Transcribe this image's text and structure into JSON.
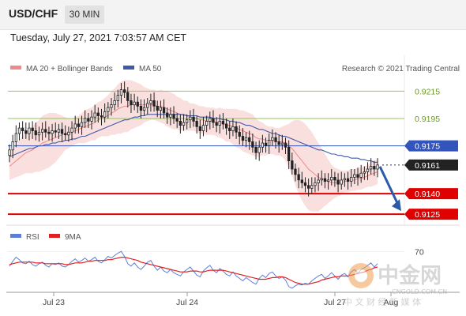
{
  "header": {
    "pair": "USD/CHF",
    "timeframe": "30 MIN"
  },
  "datetime": "Tuesday, July 27, 2021 7:03:57 AM CET",
  "legend": {
    "ma20": {
      "label": "MA 20 + Bollinger Bands",
      "color": "#f08a8a"
    },
    "ma50": {
      "label": "MA 50",
      "color": "#3f5aa8"
    },
    "rsi": {
      "label": "RSI",
      "color": "#5b7fd6"
    },
    "ma9": {
      "label": "9MA",
      "color": "#e02020"
    }
  },
  "source": "Research © 2021 Trading Central",
  "watermark": {
    "brand": "中金网",
    "site": "CNGOLD.COM.CN",
    "tagline": "中 文 财 经 新 媒 体"
  },
  "chart_data": [
    {
      "type": "candlestick",
      "ylim": [
        0.9117,
        0.9225
      ],
      "levels": [
        {
          "value": 0.9215,
          "label": "0.9215",
          "kind": "resistance",
          "color": "#8fc85a"
        },
        {
          "value": 0.9195,
          "label": "0.9195",
          "kind": "resistance",
          "color": "#8fc85a"
        },
        {
          "value": 0.9175,
          "label": "0.9175",
          "kind": "pivot",
          "color": "#3355bb"
        },
        {
          "value": 0.9161,
          "label": "0.9161",
          "kind": "last",
          "color": "#222222"
        },
        {
          "value": 0.914,
          "label": "0.9140",
          "kind": "support",
          "color": "#e00000"
        },
        {
          "value": 0.9125,
          "label": "0.9125",
          "kind": "support",
          "color": "#e00000"
        }
      ],
      "x_ticks": [
        "Jul 23",
        "Jul 24",
        "Jul 27",
        "Aug"
      ],
      "forecast_arrow": {
        "from": 0.9161,
        "to": 0.9125,
        "direction": "down"
      },
      "closes": [
        0.9172,
        0.9178,
        0.9184,
        0.9188,
        0.9186,
        0.9184,
        0.9188,
        0.9186,
        0.9183,
        0.9185,
        0.9187,
        0.9185,
        0.9184,
        0.9186,
        0.9185,
        0.9187,
        0.9184,
        0.9183,
        0.9185,
        0.9188,
        0.9191,
        0.9189,
        0.9192,
        0.9195,
        0.9193,
        0.9196,
        0.9199,
        0.9197,
        0.9196,
        0.92,
        0.9203,
        0.9205,
        0.9208,
        0.9212,
        0.9216,
        0.9214,
        0.9208,
        0.9205,
        0.9207,
        0.9204,
        0.9201,
        0.9203,
        0.9206,
        0.9208,
        0.9204,
        0.9201,
        0.9203,
        0.9199,
        0.9196,
        0.9198,
        0.9195,
        0.9193,
        0.919,
        0.9192,
        0.9194,
        0.9196,
        0.9193,
        0.9189,
        0.9186,
        0.919,
        0.9193,
        0.9195,
        0.9192,
        0.919,
        0.9193,
        0.9191,
        0.9188,
        0.9186,
        0.9189,
        0.9185,
        0.9182,
        0.9179,
        0.9181,
        0.9178,
        0.9174,
        0.917,
        0.9174,
        0.9177,
        0.9175,
        0.9179,
        0.9181,
        0.9178,
        0.9176,
        0.9177,
        0.9174,
        0.9164,
        0.9158,
        0.9154,
        0.915,
        0.9148,
        0.9146,
        0.9144,
        0.9146,
        0.9148,
        0.915,
        0.9151,
        0.9149,
        0.915,
        0.9152,
        0.915,
        0.9147,
        0.915,
        0.9151,
        0.9149,
        0.9152,
        0.9154,
        0.9152,
        0.9155,
        0.9156,
        0.9158,
        0.916,
        0.9158,
        0.9161
      ],
      "ma20": [
        0.916,
        0.9162,
        0.9164,
        0.9166,
        0.9168,
        0.917,
        0.9171,
        0.9172,
        0.9174,
        0.9175,
        0.9177,
        0.9178,
        0.9179,
        0.918,
        0.9181,
        0.9182,
        0.9183,
        0.9184,
        0.9184,
        0.9185,
        0.9186,
        0.9187,
        0.9188,
        0.9189,
        0.919,
        0.9191,
        0.9192,
        0.9194,
        0.9195,
        0.9196,
        0.9197,
        0.9199,
        0.92,
        0.9202,
        0.9203,
        0.9204,
        0.9204,
        0.9205,
        0.9205,
        0.9205,
        0.9205,
        0.9205,
        0.9205,
        0.9205,
        0.9205,
        0.9204,
        0.9204,
        0.9203,
        0.9202,
        0.9201,
        0.92,
        0.9199,
        0.9198,
        0.9197,
        0.9197,
        0.9196,
        0.9196,
        0.9195,
        0.9194,
        0.9194,
        0.9193,
        0.9193,
        0.9193,
        0.9192,
        0.9192,
        0.9191,
        0.919,
        0.919,
        0.9189,
        0.9188,
        0.9187,
        0.9186,
        0.9185,
        0.9184,
        0.9183,
        0.9181,
        0.918,
        0.918,
        0.9179,
        0.9179,
        0.9179,
        0.9178,
        0.9178,
        0.9178,
        0.9177,
        0.9175,
        0.9173,
        0.917,
        0.9167,
        0.9164,
        0.9161,
        0.9158,
        0.9156,
        0.9154,
        0.9152,
        0.9151,
        0.915,
        0.9149,
        0.9148,
        0.9148,
        0.9148,
        0.9148,
        0.9149,
        0.9149,
        0.915,
        0.915,
        0.9151,
        0.9151,
        0.9152,
        0.9153,
        0.9154,
        0.9155,
        0.9156
      ],
      "bb_width": [
        0.001,
        0.0011,
        0.0012,
        0.0013,
        0.0014,
        0.0015,
        0.0016,
        0.0017,
        0.0018,
        0.0019,
        0.002,
        0.002,
        0.002,
        0.0019,
        0.0018,
        0.0016,
        0.0014,
        0.0012,
        0.0011,
        0.001,
        0.001,
        0.001,
        0.0011,
        0.0012,
        0.0012,
        0.0012,
        0.0013,
        0.0013,
        0.0013,
        0.0014,
        0.0015,
        0.0016,
        0.0017,
        0.0018,
        0.0019,
        0.0019,
        0.0019,
        0.0018,
        0.0017,
        0.0016,
        0.0015,
        0.0013,
        0.0012,
        0.0011,
        0.0011,
        0.0011,
        0.0012,
        0.0012,
        0.0013,
        0.0013,
        0.0013,
        0.0012,
        0.0012,
        0.0011,
        0.0011,
        0.001,
        0.001,
        0.001,
        0.001,
        0.001,
        0.001,
        0.001,
        0.001,
        0.001,
        0.0011,
        0.0011,
        0.0012,
        0.0012,
        0.0013,
        0.0014,
        0.0014,
        0.0015,
        0.0015,
        0.0015,
        0.0015,
        0.0014,
        0.0013,
        0.0012,
        0.0011,
        0.001,
        0.001,
        0.001,
        0.001,
        0.0011,
        0.0013,
        0.0016,
        0.002,
        0.0024,
        0.0027,
        0.0029,
        0.003,
        0.003,
        0.0029,
        0.0027,
        0.0025,
        0.0022,
        0.0019,
        0.0016,
        0.0013,
        0.0011,
        0.001,
        0.0009,
        0.0008,
        0.0008,
        0.0008,
        0.0008,
        0.0008,
        0.0008,
        0.0008,
        0.0008,
        0.0009,
        0.0009,
        0.0009
      ],
      "ma50": [
        0.9167,
        0.9168,
        0.9169,
        0.917,
        0.9171,
        0.9172,
        0.9173,
        0.9173,
        0.9174,
        0.9175,
        0.9175,
        0.9176,
        0.9176,
        0.9177,
        0.9177,
        0.9178,
        0.9178,
        0.9179,
        0.9179,
        0.918,
        0.918,
        0.9181,
        0.9182,
        0.9182,
        0.9183,
        0.9184,
        0.9185,
        0.9186,
        0.9187,
        0.9188,
        0.9189,
        0.919,
        0.9191,
        0.9192,
        0.9193,
        0.9194,
        0.9194,
        0.9195,
        0.9196,
        0.9196,
        0.9197,
        0.9197,
        0.9198,
        0.9198,
        0.9198,
        0.9198,
        0.9198,
        0.9198,
        0.9198,
        0.9198,
        0.9198,
        0.9198,
        0.9198,
        0.9198,
        0.9197,
        0.9197,
        0.9197,
        0.9197,
        0.9196,
        0.9196,
        0.9196,
        0.9196,
        0.9195,
        0.9195,
        0.9195,
        0.9194,
        0.9194,
        0.9193,
        0.9193,
        0.9192,
        0.9192,
        0.9191,
        0.919,
        0.919,
        0.9189,
        0.9188,
        0.9187,
        0.9187,
        0.9186,
        0.9185,
        0.9184,
        0.9184,
        0.9183,
        0.9182,
        0.9182,
        0.9181,
        0.918,
        0.9179,
        0.9178,
        0.9177,
        0.9176,
        0.9175,
        0.9174,
        0.9173,
        0.9172,
        0.9172,
        0.9171,
        0.917,
        0.9169,
        0.9169,
        0.9168,
        0.9168,
        0.9167,
        0.9167,
        0.9166,
        0.9166,
        0.9166,
        0.9165,
        0.9165,
        0.9164,
        0.9164,
        0.9163,
        0.9163
      ]
    },
    {
      "type": "line",
      "name": "RSI",
      "ylim": [
        20,
        80
      ],
      "ticks": [
        "70"
      ],
      "rsi": [
        52,
        58,
        63,
        60,
        56,
        55,
        58,
        54,
        52,
        55,
        57,
        53,
        51,
        55,
        54,
        56,
        52,
        51,
        54,
        58,
        61,
        57,
        59,
        62,
        58,
        60,
        63,
        58,
        56,
        60,
        64,
        62,
        65,
        68,
        70,
        64,
        55,
        52,
        56,
        51,
        48,
        52,
        57,
        59,
        52,
        47,
        51,
        46,
        44,
        48,
        44,
        42,
        40,
        45,
        48,
        51,
        46,
        41,
        39,
        46,
        50,
        53,
        47,
        44,
        49,
        46,
        42,
        40,
        45,
        40,
        37,
        34,
        38,
        35,
        32,
        30,
        37,
        41,
        38,
        43,
        45,
        40,
        37,
        39,
        35,
        27,
        25,
        28,
        30,
        29,
        31,
        30,
        34,
        37,
        40,
        42,
        37,
        40,
        44,
        40,
        36,
        41,
        43,
        39,
        45,
        48,
        43,
        48,
        50,
        53,
        56,
        51,
        55
      ],
      "ma9": [
        54,
        55,
        56,
        57,
        57,
        57,
        57,
        57,
        56,
        56,
        56,
        55,
        55,
        55,
        55,
        55,
        55,
        54,
        54,
        55,
        56,
        56,
        56,
        57,
        58,
        58,
        59,
        59,
        59,
        59,
        60,
        60,
        61,
        62,
        63,
        63,
        62,
        61,
        60,
        59,
        57,
        56,
        55,
        54,
        53,
        52,
        51,
        50,
        49,
        48,
        47,
        46,
        45,
        45,
        45,
        46,
        46,
        46,
        45,
        45,
        46,
        47,
        47,
        47,
        47,
        47,
        46,
        45,
        44,
        43,
        42,
        41,
        40,
        39,
        38,
        37,
        36,
        36,
        36,
        37,
        38,
        38,
        39,
        39,
        38,
        36,
        34,
        32,
        31,
        30,
        30,
        30,
        31,
        32,
        33,
        35,
        36,
        37,
        38,
        39,
        39,
        40,
        40,
        40,
        41,
        42,
        43,
        44,
        45,
        47,
        48,
        50,
        51
      ]
    }
  ]
}
